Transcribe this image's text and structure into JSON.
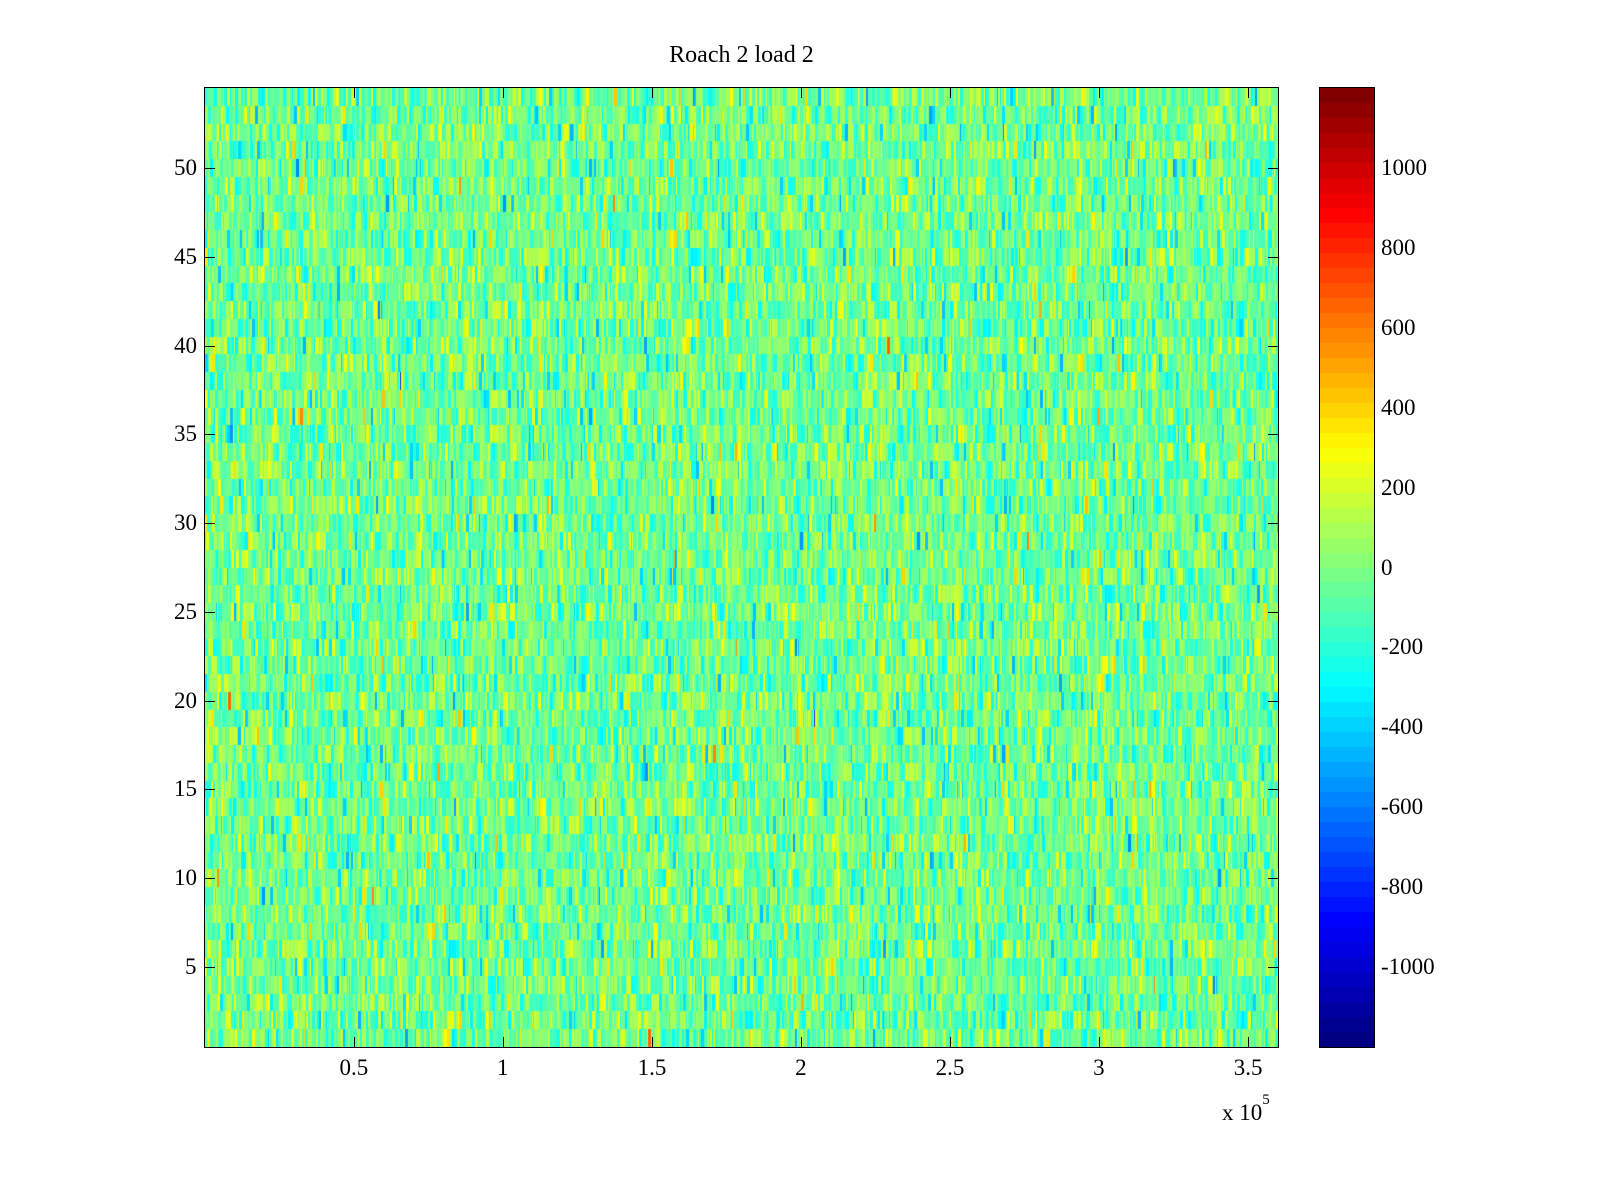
{
  "chart_data": {
    "type": "heatmap",
    "title": "Roach 2 load 2",
    "xlabel": "",
    "ylabel": "",
    "x_multiplier_label": "x 10",
    "x_multiplier_exponent": "5",
    "xlim": [
      0,
      360000
    ],
    "ylim": [
      0.5,
      54.5
    ],
    "rows": 54,
    "xticks": [
      50000,
      100000,
      150000,
      200000,
      250000,
      300000,
      350000
    ],
    "xtick_labels": [
      "0.5",
      "1",
      "1.5",
      "2",
      "2.5",
      "3",
      "3.5"
    ],
    "yticks": [
      5,
      10,
      15,
      20,
      25,
      30,
      35,
      40,
      45,
      50
    ],
    "ytick_labels": [
      "5",
      "10",
      "15",
      "20",
      "25",
      "30",
      "35",
      "40",
      "45",
      "50"
    ],
    "colormap": "jet",
    "clim": [
      -1200,
      1200
    ],
    "colorbar_ticks": [
      1000,
      800,
      600,
      400,
      200,
      0,
      -200,
      -400,
      -600,
      -800,
      -1000
    ],
    "colorbar_tick_labels": [
      "1000",
      "800",
      "600",
      "400",
      "200",
      "0",
      "-200",
      "-400",
      "-600",
      "-800",
      "-1000"
    ],
    "value_distribution": {
      "mean": -40,
      "std": 160,
      "min_seen": -1000,
      "max_seen": 700
    },
    "grid": false
  }
}
